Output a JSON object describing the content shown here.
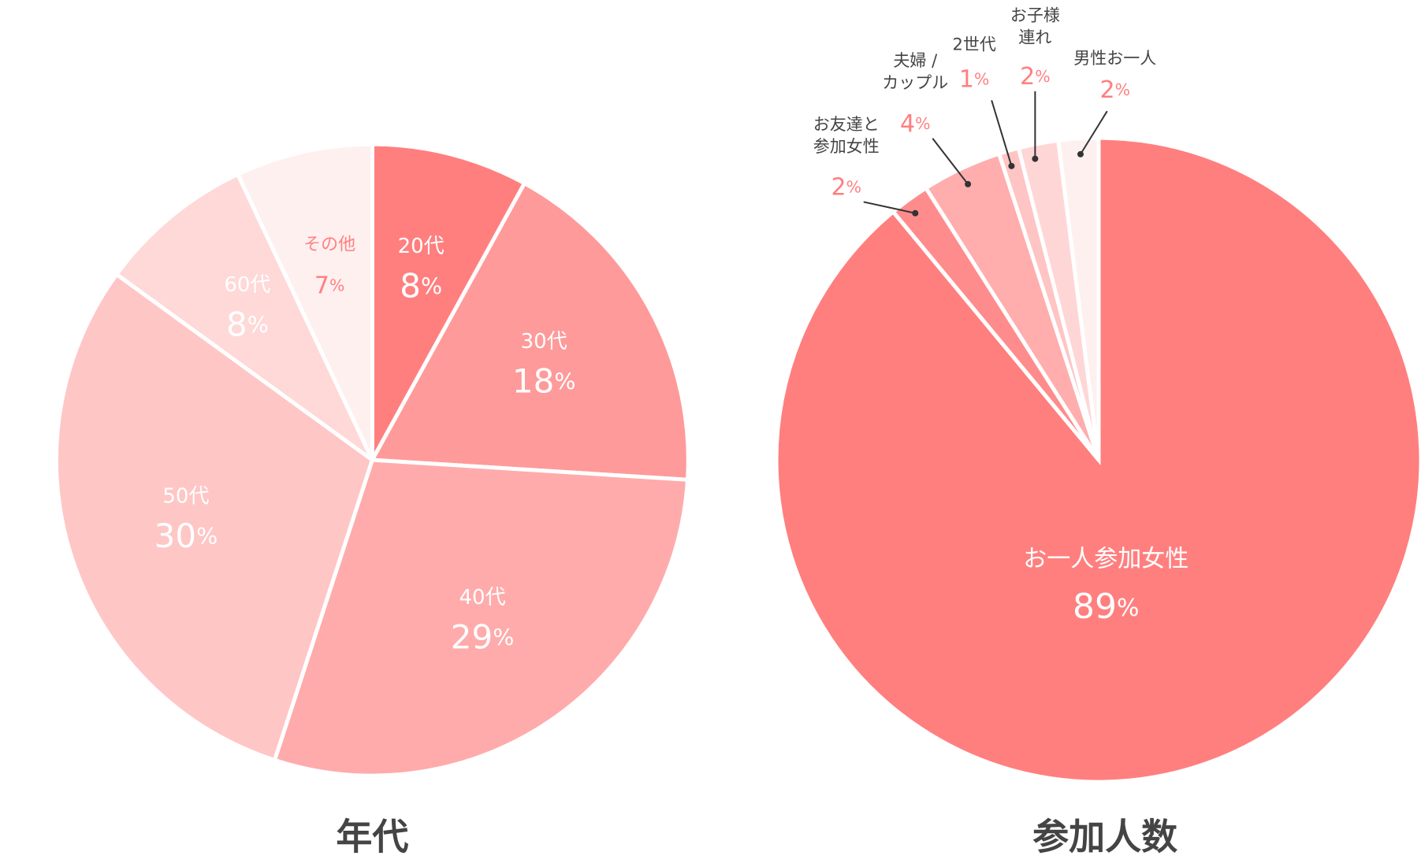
{
  "chart_data": [
    {
      "type": "pie",
      "title": "年代",
      "categories": [
        "20代",
        "30代",
        "40代",
        "50代",
        "60代",
        "その他"
      ],
      "values": [
        8,
        18,
        29,
        30,
        8,
        7
      ],
      "value_labels": [
        "8%",
        "18%",
        "29%",
        "30%",
        "8%",
        "7%"
      ],
      "colors": [
        "#ff7f7f",
        "#ff9a9a",
        "#ffabab",
        "#ffc6c6",
        "#ffd8d8",
        "#fff0f0"
      ]
    },
    {
      "type": "pie",
      "title": "参加人数",
      "categories": [
        "お一人参加女性",
        "お友達と\n参加女性",
        "夫婦 /\nカップル",
        "2世代",
        "お子様\n連れ",
        "男性お一人"
      ],
      "values": [
        89,
        2,
        4,
        1,
        2,
        2
      ],
      "value_labels": [
        "89%",
        "2%",
        "4%",
        "1%",
        "2%",
        "2%"
      ],
      "colors": [
        "#ff7f7f",
        "#ff8c8c",
        "#ffadad",
        "#ffc4c4",
        "#ffd6d6",
        "#fff0f0"
      ]
    }
  ]
}
